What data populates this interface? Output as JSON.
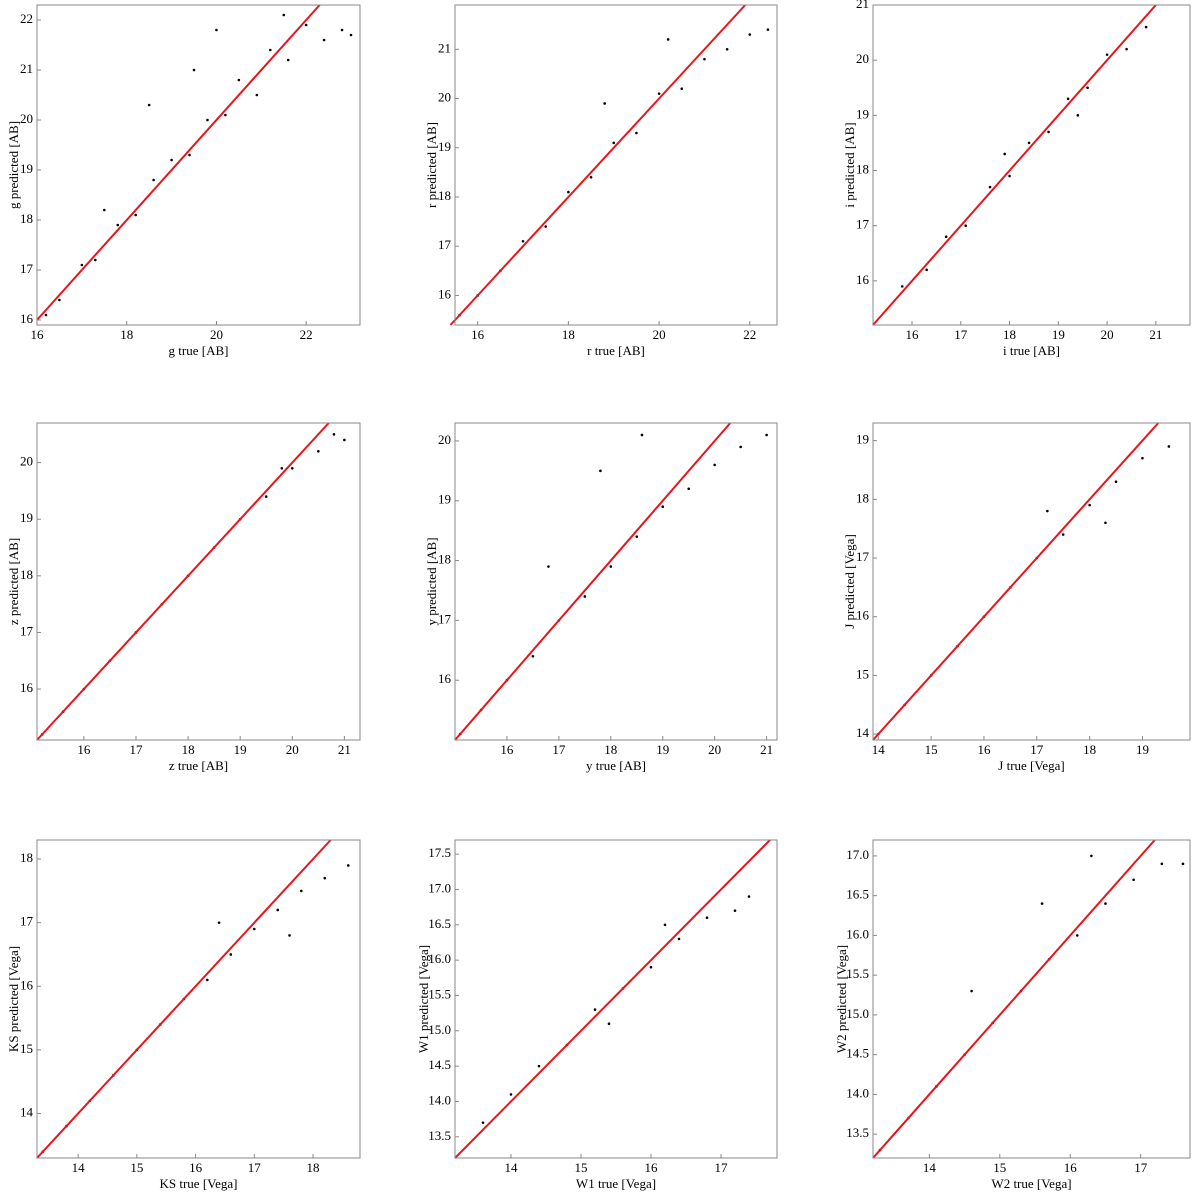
{
  "chart_data": [
    {
      "type": "scatter",
      "xlabel": "g true [AB]",
      "ylabel": "g predicted [AB]",
      "color": "#000000",
      "xlim": [
        16,
        23.2
      ],
      "ylim": [
        15.9,
        22.3
      ],
      "xticks": [
        16,
        18,
        20,
        22
      ],
      "yticks": [
        16,
        17,
        18,
        19,
        20,
        21,
        22
      ],
      "x": [
        16.2,
        16.5,
        17,
        17.3,
        17.8,
        18.2,
        18.6,
        19,
        19.4,
        19.8,
        20.2,
        20.5,
        20.9,
        21.2,
        21.6,
        22,
        22.4,
        22.8,
        23,
        18.5,
        20,
        21.5,
        17.5,
        19.5
      ],
      "y": [
        16.1,
        16.4,
        17.1,
        17.2,
        17.9,
        18.1,
        18.8,
        19.2,
        19.3,
        20,
        20.1,
        20.8,
        20.5,
        21.4,
        21.2,
        21.9,
        21.6,
        21.8,
        21.7,
        20.3,
        21.8,
        22.1,
        18.2,
        21
      ],
      "reference_line": {
        "x": [
          16,
          22.3
        ],
        "y": [
          16,
          22.3
        ],
        "color": "#e8141a"
      }
    },
    {
      "type": "scatter",
      "xlabel": "r true [AB]",
      "ylabel": "r predicted [AB]",
      "color": "#000000",
      "xlim": [
        15.5,
        22.6
      ],
      "ylim": [
        15.4,
        21.9
      ],
      "xticks": [
        16,
        18,
        20,
        22
      ],
      "yticks": [
        16,
        17,
        18,
        19,
        20,
        21
      ],
      "x": [
        15.6,
        16,
        16.5,
        17,
        17.5,
        18,
        18.5,
        19,
        19.5,
        20,
        20.5,
        21,
        21.5,
        22,
        22.4,
        18.8,
        20.2
      ],
      "y": [
        15.6,
        16,
        16.5,
        17.1,
        17.4,
        18.1,
        18.4,
        19.1,
        19.3,
        20.1,
        20.2,
        20.8,
        21,
        21.3,
        21.4,
        19.9,
        21.2
      ],
      "reference_line": {
        "x": [
          15.4,
          21.9
        ],
        "y": [
          15.4,
          21.9
        ],
        "color": "#e8141a"
      }
    },
    {
      "type": "scatter",
      "xlabel": "i true [AB]",
      "ylabel": "i predicted [AB]",
      "color": "#000000",
      "xlim": [
        15.2,
        21.7
      ],
      "ylim": [
        15.2,
        21
      ],
      "xticks": [
        16,
        17,
        18,
        19,
        20,
        21
      ],
      "yticks": [
        16,
        17,
        18,
        19,
        20,
        21
      ],
      "x": [
        15.8,
        16.3,
        16.7,
        17.1,
        17.6,
        18,
        18.4,
        18.8,
        19.2,
        19.6,
        20,
        20.4,
        20.8,
        17.9,
        19.4
      ],
      "y": [
        15.9,
        16.2,
        16.8,
        17,
        17.7,
        17.9,
        18.5,
        18.7,
        19.3,
        19.5,
        20.1,
        20.2,
        20.6,
        18.3,
        19
      ],
      "reference_line": {
        "x": [
          15.2,
          21
        ],
        "y": [
          15.2,
          21
        ],
        "color": "#e8141a"
      }
    },
    {
      "type": "scatter",
      "xlabel": "z true [AB]",
      "ylabel": "z predicted [AB]",
      "color": "#000000",
      "xlim": [
        15.1,
        21.3
      ],
      "ylim": [
        15.1,
        20.7
      ],
      "xticks": [
        16,
        17,
        18,
        19,
        20,
        21
      ],
      "yticks": [
        16,
        17,
        18,
        19,
        20
      ],
      "x": [
        15.2,
        15.6,
        16,
        16.5,
        17,
        17.5,
        18,
        18.5,
        19,
        19.5,
        20,
        20.5,
        21,
        19.8,
        20.8
      ],
      "y": [
        15.2,
        15.6,
        16,
        16.5,
        17,
        17.5,
        18,
        18.5,
        19,
        19.4,
        19.9,
        20.2,
        20.4,
        19.9,
        20.5
      ],
      "reference_line": {
        "x": [
          15.1,
          20.7
        ],
        "y": [
          15.1,
          20.7
        ],
        "color": "#e8141a"
      }
    },
    {
      "type": "scatter",
      "xlabel": "y true [AB]",
      "ylabel": "y predicted [AB]",
      "color": "#000000",
      "xlim": [
        15,
        21.2
      ],
      "ylim": [
        15,
        20.3
      ],
      "xticks": [
        16,
        17,
        18,
        19,
        20,
        21
      ],
      "yticks": [
        16,
        17,
        18,
        19,
        20
      ],
      "x": [
        15.1,
        15.5,
        16,
        16.5,
        17,
        17.5,
        18,
        18.5,
        19,
        19.5,
        20,
        20.5,
        21,
        17.8,
        18.6,
        16.8
      ],
      "y": [
        15.1,
        15.5,
        16,
        16.4,
        17,
        17.4,
        17.9,
        18.4,
        18.9,
        19.2,
        19.6,
        19.9,
        20.1,
        19.5,
        20.1,
        17.9
      ],
      "reference_line": {
        "x": [
          15,
          20.3
        ],
        "y": [
          15,
          20.3
        ],
        "color": "#e8141a"
      }
    },
    {
      "type": "scatter",
      "xlabel": "J true [Vega]",
      "ylabel": "J predicted [Vega]",
      "color": "#000000",
      "xlim": [
        13.9,
        19.9
      ],
      "ylim": [
        13.9,
        19.3
      ],
      "xticks": [
        14,
        15,
        16,
        17,
        18,
        19
      ],
      "yticks": [
        14,
        15,
        16,
        17,
        18,
        19
      ],
      "x": [
        14,
        14.5,
        15,
        15.5,
        16,
        16.5,
        17,
        17.5,
        18,
        18.5,
        19,
        19.5,
        17.2,
        18.3
      ],
      "y": [
        14,
        14.5,
        15,
        15.5,
        16,
        16.5,
        17,
        17.4,
        17.9,
        18.3,
        18.7,
        18.9,
        17.8,
        17.6
      ],
      "reference_line": {
        "x": [
          13.9,
          19.3
        ],
        "y": [
          13.9,
          19.3
        ],
        "color": "#e8141a"
      }
    },
    {
      "type": "scatter",
      "xlabel": "KS true [Vega]",
      "ylabel": "KS predicted [Vega]",
      "color": "#000000",
      "xlim": [
        13.3,
        18.8
      ],
      "ylim": [
        13.3,
        18.3
      ],
      "xticks": [
        14,
        15,
        16,
        17,
        18
      ],
      "yticks": [
        14,
        15,
        16,
        17,
        18
      ],
      "x": [
        13.4,
        13.8,
        14.2,
        14.6,
        15,
        15.4,
        15.8,
        16.2,
        16.6,
        17,
        17.4,
        17.8,
        18.2,
        18.6,
        16.4,
        17.6
      ],
      "y": [
        13.4,
        13.8,
        14.2,
        14.6,
        15,
        15.4,
        15.8,
        16.1,
        16.5,
        16.9,
        17.2,
        17.5,
        17.7,
        17.9,
        17,
        16.8
      ],
      "reference_line": {
        "x": [
          13.3,
          18.3
        ],
        "y": [
          13.3,
          18.3
        ],
        "color": "#e8141a"
      }
    },
    {
      "type": "scatter",
      "xlabel": "W1 true [Vega]",
      "ylabel": "W1 predicted [Vega]",
      "color": "#000000",
      "xlim": [
        13.2,
        17.8
      ],
      "ylim": [
        13.2,
        17.7
      ],
      "xticks": [
        14,
        15,
        16,
        17
      ],
      "yticks": [
        13.5,
        {
          "value": 14,
          "label": "14.0"
        },
        14.5,
        {
          "value": 15,
          "label": "15.0"
        },
        15.5,
        {
          "value": 16,
          "label": "16.0"
        },
        16.5,
        {
          "value": 17,
          "label": "17.0"
        },
        17.5
      ],
      "x": [
        13.6,
        14,
        14.4,
        14.8,
        15.2,
        15.6,
        16,
        16.4,
        16.8,
        17.2,
        17.4,
        15.4,
        16.2
      ],
      "y": [
        13.7,
        14.1,
        14.5,
        14.8,
        15.3,
        15.6,
        15.9,
        16.3,
        16.6,
        16.7,
        16.9,
        15.1,
        16.5
      ],
      "reference_line": {
        "x": [
          13.2,
          17.7
        ],
        "y": [
          13.2,
          17.7
        ],
        "color": "#e8141a"
      }
    },
    {
      "type": "scatter",
      "xlabel": "W2 true [Vega]",
      "ylabel": "W2 predicted [Vega]",
      "color": "#000000",
      "xlim": [
        13.2,
        17.7
      ],
      "ylim": [
        13.2,
        17.2
      ],
      "xticks": [
        14,
        15,
        16,
        17
      ],
      "yticks": [
        13.5,
        {
          "value": 14,
          "label": "14.0"
        },
        14.5,
        {
          "value": 15,
          "label": "15.0"
        },
        15.5,
        {
          "value": 16,
          "label": "16.0"
        },
        16.5,
        {
          "value": 17,
          "label": "17.0"
        }
      ],
      "x": [
        13.3,
        13.7,
        14.1,
        14.5,
        14.9,
        15.3,
        15.7,
        16.1,
        16.5,
        16.9,
        17.3,
        17.6,
        14.6,
        15.6,
        16.3
      ],
      "y": [
        13.3,
        13.7,
        14.1,
        14.5,
        14.9,
        15.3,
        15.7,
        16,
        16.4,
        16.7,
        16.9,
        16.9,
        15.3,
        16.4,
        17
      ],
      "reference_line": {
        "x": [
          13.2,
          17.2
        ],
        "y": [
          13.2,
          17.2
        ],
        "color": "#e8141a"
      }
    }
  ]
}
